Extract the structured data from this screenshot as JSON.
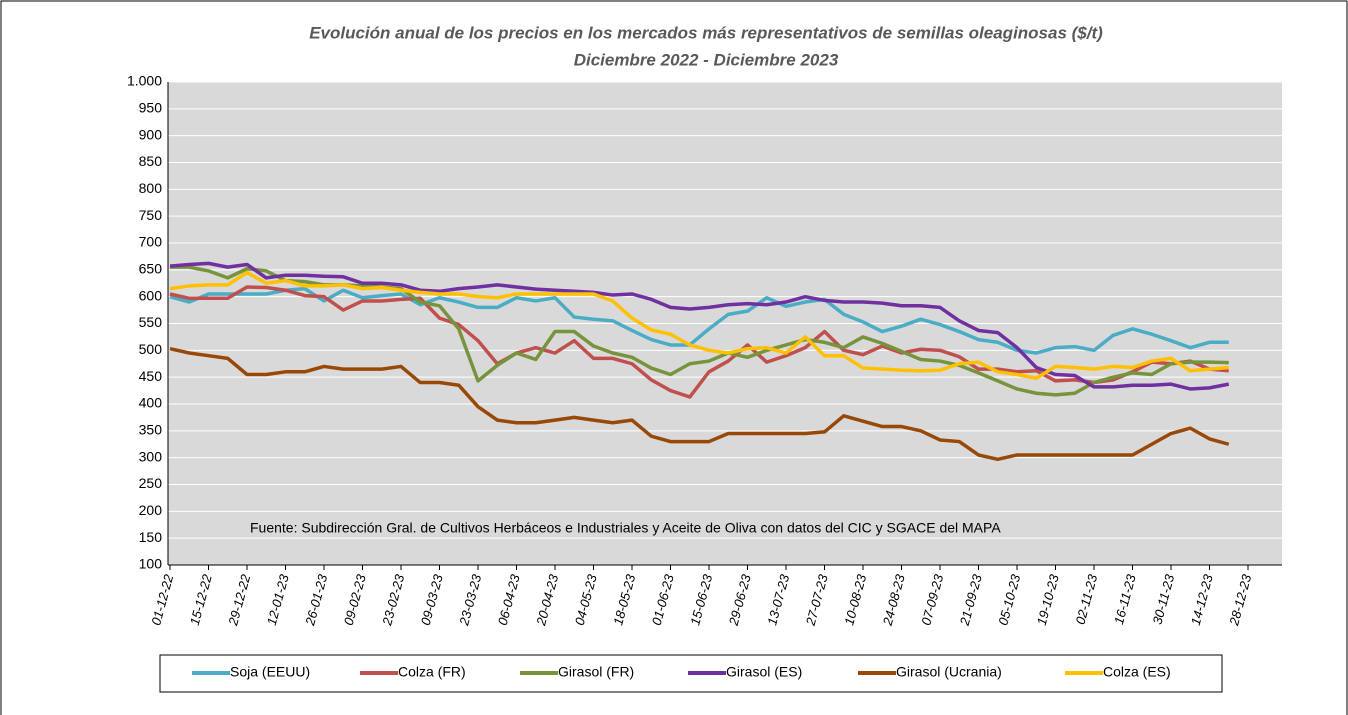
{
  "chart_data": {
    "type": "line",
    "title": "Evolución anual de los precios en los mercados más representativos de semillas oleaginosas  ($/t)",
    "subtitle": "Diciembre 2022 - Diciembre 2023",
    "annotation": "Fuente: Subdirección Gral. de Cultivos Herbáceos e Industriales y Aceite de Oliva con datos del CIC y SGACE del MAPA",
    "categories": [
      "01-12-22",
      null,
      "15-12-22",
      null,
      "29-12-22",
      null,
      "12-01-23",
      null,
      "26-01-23",
      null,
      "09-02-23",
      null,
      "23-02-23",
      null,
      "09-03-23",
      null,
      "23-03-23",
      null,
      "06-04-23",
      null,
      "20-04-23",
      null,
      "04-05-23",
      null,
      "18-05-23",
      null,
      "01-06-23",
      null,
      "15-06-23",
      null,
      "29-06-23",
      null,
      "13-07-23",
      null,
      "27-07-23",
      null,
      "10-08-23",
      null,
      "24-08-23",
      null,
      "07-09-23",
      null,
      "21-09-23",
      null,
      "05-10-23",
      null,
      "19-10-23",
      null,
      "02-11-23",
      null,
      "16-11-23",
      null,
      "30-11-23",
      null,
      "14-12-23",
      null,
      "28-12-23"
    ],
    "series": [
      {
        "name": "Soja (EEUU)",
        "color": "#4bacc6",
        "values": [
          600,
          590,
          605,
          605,
          605,
          605,
          612,
          615,
          592,
          612,
          598,
          602,
          605,
          585,
          598,
          590,
          580,
          580,
          598,
          592,
          598,
          562,
          558,
          555,
          537,
          520,
          510,
          510,
          540,
          567,
          573,
          598,
          582,
          590,
          595,
          567,
          553,
          535,
          545,
          558,
          548,
          535,
          520,
          515,
          500,
          495,
          505,
          507,
          500,
          528,
          540,
          530,
          518,
          505,
          515,
          515,
          null
        ]
      },
      {
        "name": "Colza (FR)",
        "color": "#c0504d",
        "values": [
          605,
          597,
          597,
          597,
          618,
          617,
          612,
          602,
          600,
          575,
          592,
          592,
          595,
          597,
          560,
          548,
          518,
          475,
          495,
          505,
          495,
          518,
          485,
          485,
          475,
          445,
          425,
          413,
          460,
          480,
          510,
          478,
          490,
          505,
          535,
          500,
          492,
          508,
          495,
          502,
          500,
          488,
          465,
          465,
          460,
          462,
          443,
          445,
          440,
          445,
          460,
          478,
          475,
          480,
          465,
          462,
          null
        ]
      },
      {
        "name": "Girasol (FR)",
        "color": "#77933c",
        "values": [
          655,
          655,
          648,
          635,
          652,
          648,
          630,
          628,
          622,
          622,
          620,
          618,
          615,
          590,
          583,
          540,
          443,
          472,
          495,
          483,
          535,
          535,
          508,
          495,
          487,
          467,
          455,
          475,
          480,
          495,
          487,
          500,
          510,
          520,
          515,
          505,
          525,
          513,
          498,
          483,
          480,
          472,
          458,
          443,
          428,
          420,
          417,
          420,
          440,
          450,
          458,
          455,
          475,
          478,
          478,
          477,
          null
        ]
      },
      {
        "name": "Girasol (ES)",
        "color": "#7030a0",
        "values": [
          657,
          660,
          662,
          655,
          660,
          635,
          640,
          640,
          638,
          637,
          625,
          625,
          622,
          612,
          610,
          615,
          618,
          622,
          618,
          614,
          612,
          610,
          608,
          603,
          605,
          595,
          580,
          577,
          580,
          585,
          587,
          585,
          590,
          600,
          593,
          590,
          590,
          588,
          583,
          583,
          580,
          555,
          537,
          533,
          505,
          468,
          455,
          453,
          432,
          432,
          435,
          435,
          437,
          428,
          430,
          437,
          null
        ]
      },
      {
        "name": "Girasol (Ucrania)",
        "color": "#984807",
        "values": [
          503,
          495,
          490,
          485,
          455,
          455,
          460,
          460,
          470,
          465,
          465,
          465,
          470,
          440,
          440,
          435,
          395,
          370,
          365,
          365,
          370,
          375,
          370,
          365,
          370,
          340,
          330,
          330,
          330,
          345,
          345,
          345,
          345,
          345,
          348,
          378,
          368,
          358,
          358,
          350,
          333,
          330,
          305,
          297,
          305,
          305,
          305,
          305,
          305,
          305,
          305,
          325,
          345,
          355,
          335,
          325,
          null
        ]
      },
      {
        "name": "Colza (ES)",
        "color": "#ffc000",
        "values": [
          615,
          620,
          622,
          622,
          645,
          625,
          630,
          620,
          620,
          622,
          615,
          617,
          612,
          608,
          605,
          605,
          600,
          598,
          605,
          605,
          605,
          605,
          605,
          592,
          560,
          538,
          530,
          510,
          500,
          495,
          503,
          505,
          495,
          525,
          490,
          490,
          467,
          465,
          463,
          462,
          463,
          475,
          478,
          460,
          455,
          448,
          470,
          468,
          465,
          470,
          468,
          480,
          485,
          462,
          465,
          468,
          null
        ]
      }
    ],
    "ylim": [
      100,
      1000
    ],
    "yticks": [
      100,
      150,
      200,
      250,
      300,
      350,
      400,
      450,
      500,
      550,
      600,
      650,
      700,
      750,
      800,
      850,
      900,
      950,
      {
        "value": 1000,
        "label": "1.000"
      }
    ],
    "grid": true,
    "legend": "bottom"
  }
}
